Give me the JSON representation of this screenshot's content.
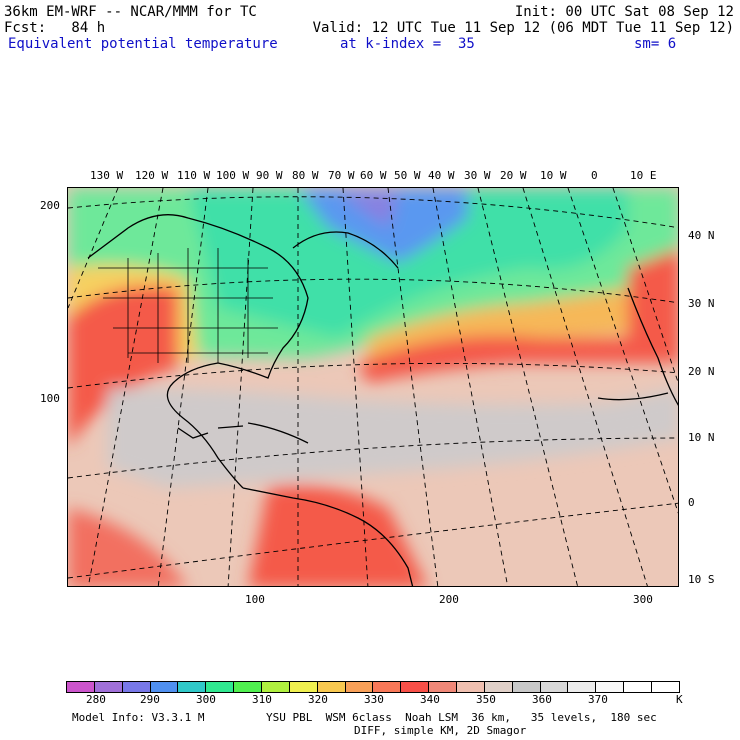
{
  "header": {
    "model": "36km EM-WRF -- NCAR/MMM for TC",
    "init": "Init: 00 UTC Sat 08 Sep 12",
    "fcst": "Fcst:   84 h",
    "valid": "Valid: 12 UTC Tue 11 Sep 12 (06 MDT Tue 11 Sep 12)",
    "field": "Equivalent potential temperature",
    "level": "at k-index =  35",
    "smooth": "sm= 6"
  },
  "top_lon_labels": [
    "130 W",
    "120 W",
    "110 W",
    "100 W",
    "90 W",
    "80 W",
    "70 W",
    "60 W",
    "50 W",
    "40 W",
    "30 W",
    "20 W",
    "10 W",
    "0",
    "10 E"
  ],
  "right_lat_labels": [
    "40 N",
    "30 N",
    "20 N",
    "10 N",
    "0",
    "10 S"
  ],
  "left_grid_labels": [
    "200",
    "100"
  ],
  "bottom_grid_labels": [
    "100",
    "200",
    "300"
  ],
  "colorbar": {
    "colors": [
      "#cc55cc",
      "#a070d8",
      "#7878e8",
      "#5090f0",
      "#30c8c8",
      "#30e890",
      "#50f050",
      "#b0f040",
      "#f0f050",
      "#f8c850",
      "#f8a058",
      "#f87858",
      "#f85048",
      "#f08878",
      "#f0c0b0",
      "#e0d0c8",
      "#c8c8c8",
      "#d8d8d8",
      "#ececec",
      "#f8f8f8",
      "#ffffff",
      "#ffffff"
    ],
    "labels": [
      "280",
      "290",
      "300",
      "310",
      "320",
      "330",
      "340",
      "350",
      "360",
      "370"
    ],
    "units": "K"
  },
  "footer": {
    "line1_left": "Model Info: V3.3.1 M",
    "line1_right": "YSU PBL  WSM 6class  Noah LSM  36 km,   35 levels,  180 sec",
    "line2": "DIFF, simple KM, 2D Smagor"
  }
}
